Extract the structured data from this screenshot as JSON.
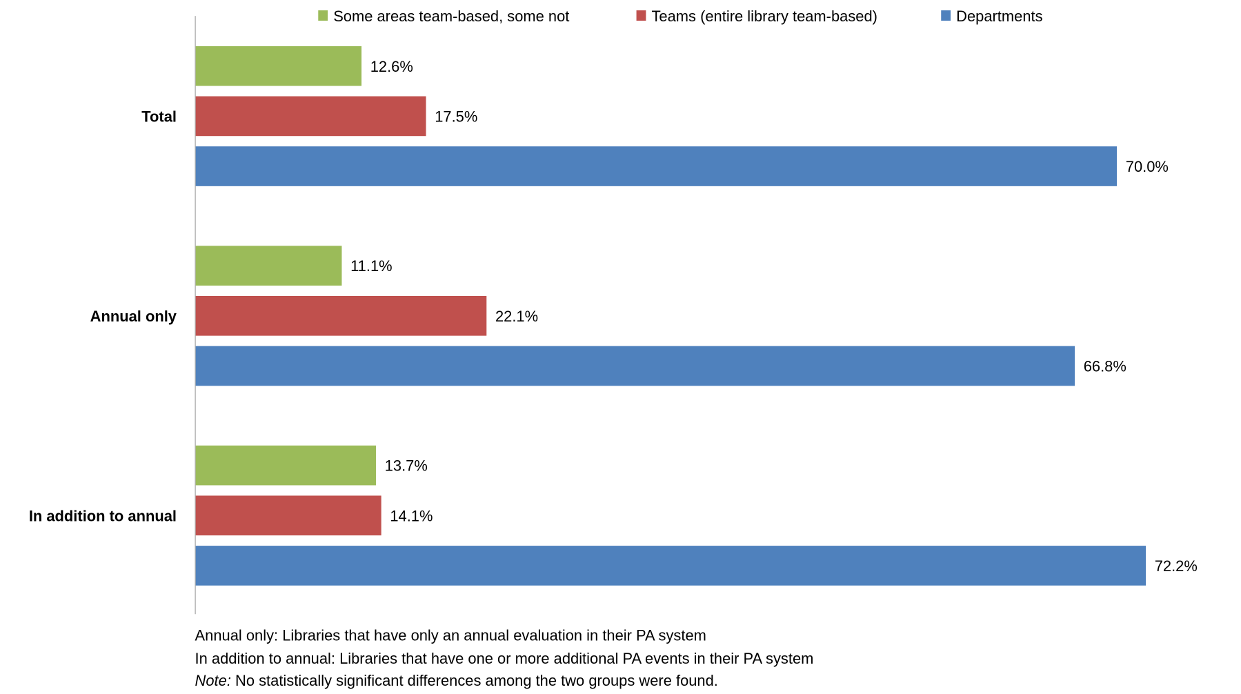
{
  "chart_data": {
    "type": "bar",
    "orientation": "horizontal",
    "categories": [
      "Total",
      "Annual only",
      "In addition to annual"
    ],
    "series": [
      {
        "name": "Some areas team-based, some not",
        "color": "#9BBB59",
        "values": [
          12.6,
          11.1,
          13.7
        ],
        "labels": [
          "12.6%",
          "11.1%",
          "13.7%"
        ]
      },
      {
        "name": "Teams (entire library team-based)",
        "color": "#C0504D",
        "values": [
          17.5,
          22.1,
          14.1
        ],
        "labels": [
          "17.5%",
          "22.1%",
          "14.1%"
        ]
      },
      {
        "name": "Departments",
        "color": "#4F81BD",
        "values": [
          70.0,
          66.8,
          72.2
        ],
        "labels": [
          "70.0%",
          "66.8%",
          "72.2%"
        ]
      }
    ],
    "xlim": [
      0,
      80
    ],
    "unit": "%",
    "grid": false,
    "legend": "top",
    "axis_color": "#A0A0A0"
  },
  "notes": {
    "line1": "Annual only: Libraries that have only an annual evaluation in their PA system",
    "line2": "In addition to annual: Libraries that have one or more additional PA events in their PA system",
    "line3_label": "Note:",
    "line3_text": " No statistically significant differences among the two groups were found."
  }
}
